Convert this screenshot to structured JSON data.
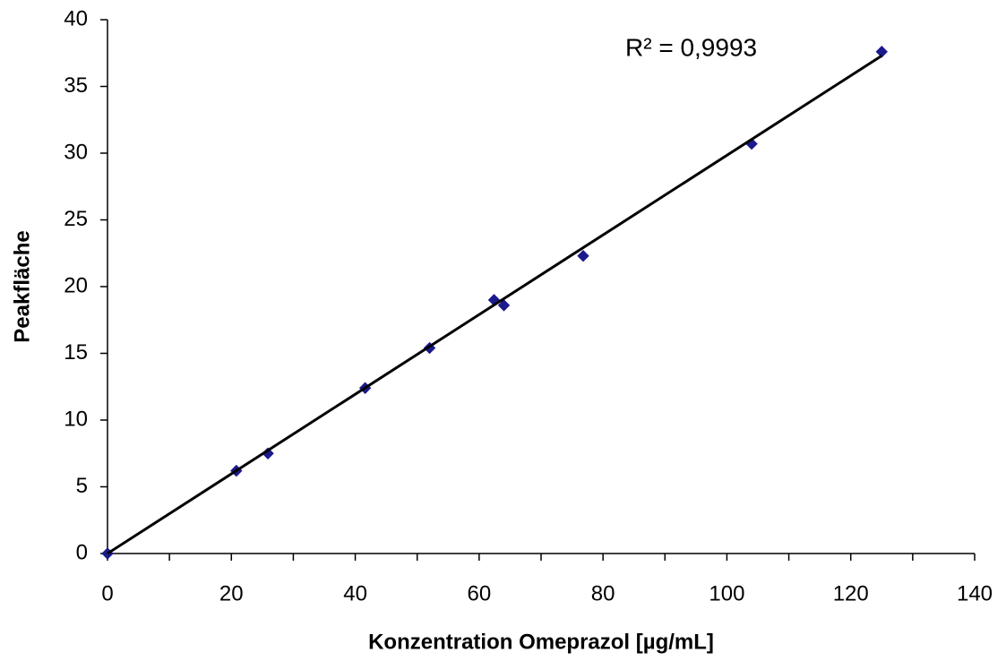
{
  "chart_data": {
    "type": "scatter",
    "x_label": "Konzentration Omeprazol [µg/mL]",
    "y_label": "Peakfläche",
    "annotation": "R² = 0,9993",
    "x": [
      0,
      20.8,
      25.9,
      41.6,
      52,
      62.4,
      64,
      76.8,
      104,
      125
    ],
    "values": [
      0,
      6.2,
      7.5,
      12.4,
      15.4,
      19,
      18.6,
      22.3,
      30.7,
      37.6
    ],
    "color": "#1a1a8c",
    "trendline": {
      "x": [
        0,
        125
      ],
      "y": [
        0,
        37.3
      ],
      "color": "#000000"
    },
    "xlim": [
      0,
      140
    ],
    "xticks": [
      0,
      20,
      40,
      60,
      80,
      100,
      120,
      140
    ],
    "xminorticks": [
      10,
      30,
      50,
      70,
      90,
      110,
      130
    ],
    "ylim": [
      0,
      40
    ],
    "yticks": [
      0,
      5,
      10,
      15,
      20,
      25,
      30,
      35,
      40
    ],
    "grid": false
  }
}
